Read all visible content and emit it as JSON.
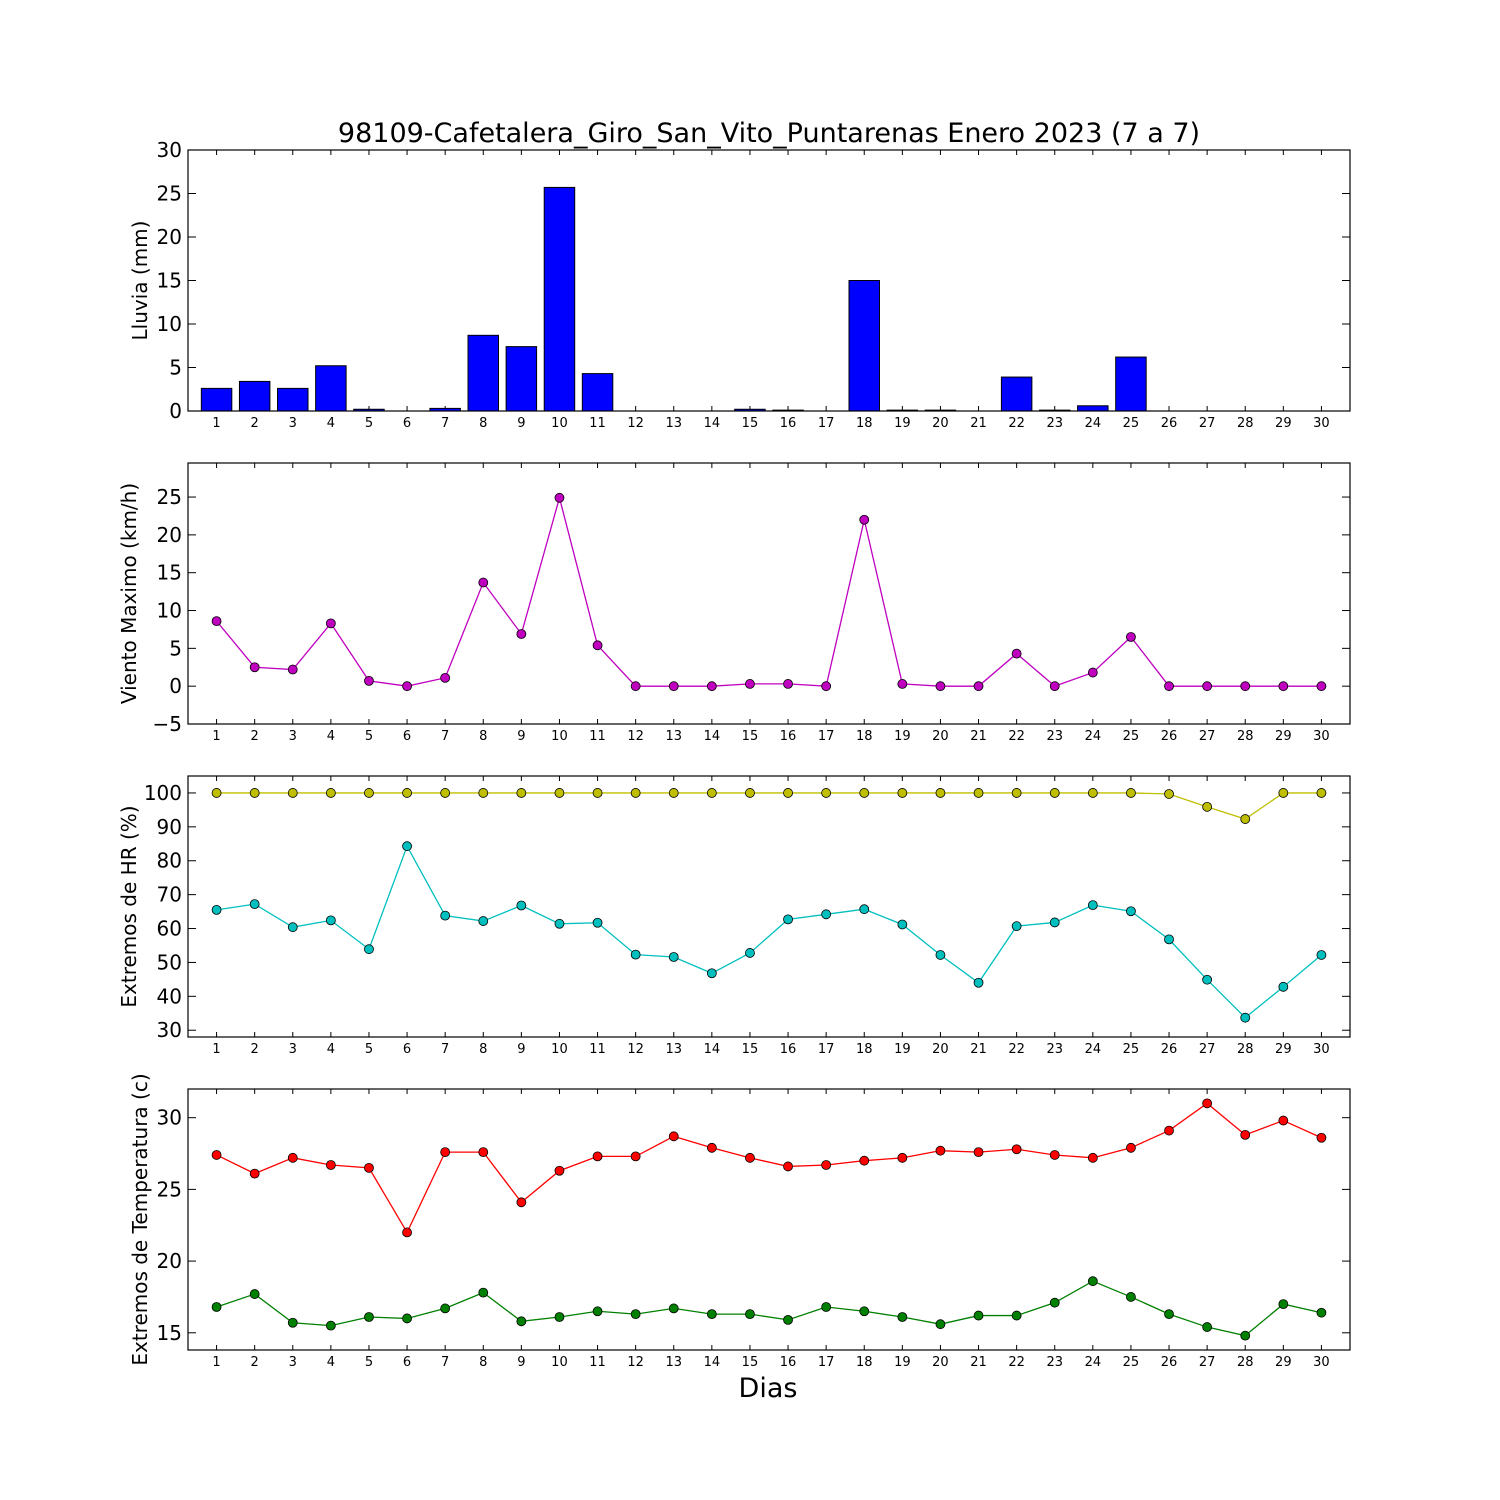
{
  "figure": {
    "title": "98109-Cafetalera_Giro_San_Vito_Puntarenas Enero 2023  (7 a 7)",
    "xlabel": "Dias"
  },
  "chart_data": [
    {
      "type": "bar",
      "ylabel": "Lluvia (mm)",
      "ylim": [
        0,
        30
      ],
      "yticks": [
        0,
        5,
        10,
        15,
        20,
        25,
        30
      ],
      "categories": [
        "1",
        "2",
        "3",
        "4",
        "5",
        "6",
        "7",
        "8",
        "9",
        "10",
        "11",
        "12",
        "13",
        "14",
        "15",
        "16",
        "17",
        "18",
        "19",
        "20",
        "21",
        "22",
        "23",
        "24",
        "25",
        "26",
        "27",
        "28",
        "29",
        "30"
      ],
      "series": [
        {
          "color": "#0000ff",
          "values": [
            2.6,
            3.4,
            2.6,
            5.2,
            0.2,
            0,
            0.3,
            8.7,
            7.4,
            25.7,
            4.3,
            0,
            0,
            0,
            0.2,
            0.1,
            0,
            15.0,
            0.1,
            0.1,
            0,
            3.9,
            0.1,
            0.6,
            6.2,
            0,
            0,
            0,
            0,
            0
          ]
        }
      ],
      "grid": false
    },
    {
      "type": "line",
      "ylabel": "Viento Maximo (km/h)",
      "ylim": [
        -5,
        29.5
      ],
      "yticks": [
        -5,
        0,
        5,
        10,
        15,
        20,
        25
      ],
      "categories": [
        "1",
        "2",
        "3",
        "4",
        "5",
        "6",
        "7",
        "8",
        "9",
        "10",
        "11",
        "12",
        "13",
        "14",
        "15",
        "16",
        "17",
        "18",
        "19",
        "20",
        "21",
        "22",
        "23",
        "24",
        "25",
        "26",
        "27",
        "28",
        "29",
        "30"
      ],
      "series": [
        {
          "color": "#bf00bf",
          "values": [
            8.6,
            2.5,
            2.2,
            8.3,
            0.7,
            0,
            1.1,
            13.7,
            6.9,
            24.9,
            5.4,
            0,
            0,
            0,
            0.3,
            0.3,
            0,
            22.0,
            0.3,
            0,
            0,
            4.3,
            0,
            1.8,
            6.5,
            0,
            0,
            0,
            0,
            0
          ]
        }
      ],
      "grid": false
    },
    {
      "type": "line",
      "ylabel": "Extremos de HR (%)",
      "ylim": [
        28,
        105
      ],
      "yticks": [
        30,
        40,
        50,
        60,
        70,
        80,
        90,
        100
      ],
      "categories": [
        "1",
        "2",
        "3",
        "4",
        "5",
        "6",
        "7",
        "8",
        "9",
        "10",
        "11",
        "12",
        "13",
        "14",
        "15",
        "16",
        "17",
        "18",
        "19",
        "20",
        "21",
        "22",
        "23",
        "24",
        "25",
        "26",
        "27",
        "28",
        "29",
        "30"
      ],
      "series": [
        {
          "color": "#bfbf00",
          "values": [
            100,
            100,
            100,
            100,
            100,
            100,
            100,
            100,
            100,
            100,
            100,
            100,
            100,
            100,
            100,
            100,
            100,
            100,
            100,
            100,
            100,
            100,
            100,
            100,
            100,
            99.7,
            95.9,
            92.3,
            100,
            100
          ]
        },
        {
          "color": "#00bfbf",
          "values": [
            65.5,
            67.2,
            60.4,
            62.4,
            53.9,
            84.3,
            63.8,
            62.2,
            66.8,
            61.4,
            61.7,
            52.3,
            51.6,
            46.8,
            52.8,
            62.7,
            64.2,
            65.7,
            61.2,
            52.2,
            44.0,
            60.7,
            61.8,
            66.9,
            65.1,
            56.8,
            44.9,
            33.7,
            42.8,
            52.2
          ]
        }
      ],
      "grid": false
    },
    {
      "type": "line",
      "ylabel": "Extremos de Temperatura (c)",
      "ylim": [
        13.8,
        32
      ],
      "yticks": [
        15,
        20,
        25,
        30
      ],
      "categories": [
        "1",
        "2",
        "3",
        "4",
        "5",
        "6",
        "7",
        "8",
        "9",
        "10",
        "11",
        "12",
        "13",
        "14",
        "15",
        "16",
        "17",
        "18",
        "19",
        "20",
        "21",
        "22",
        "23",
        "24",
        "25",
        "26",
        "27",
        "28",
        "29",
        "30"
      ],
      "series": [
        {
          "color": "#ff0000",
          "values": [
            27.4,
            26.1,
            27.2,
            26.7,
            26.5,
            22.0,
            27.6,
            27.6,
            24.1,
            26.3,
            27.3,
            27.3,
            28.7,
            27.9,
            27.2,
            26.6,
            26.7,
            27.0,
            27.2,
            27.7,
            27.6,
            27.8,
            27.4,
            27.2,
            27.9,
            29.1,
            31.0,
            28.8,
            29.8,
            28.6
          ]
        },
        {
          "color": "#008000",
          "values": [
            16.8,
            17.7,
            15.7,
            15.5,
            16.1,
            16.0,
            16.7,
            17.8,
            15.8,
            16.1,
            16.5,
            16.3,
            16.7,
            16.3,
            16.3,
            15.9,
            16.8,
            16.5,
            16.1,
            15.6,
            16.2,
            16.2,
            17.1,
            18.6,
            17.5,
            16.3,
            15.4,
            14.8,
            17.0,
            16.4
          ]
        }
      ],
      "grid": false
    }
  ]
}
